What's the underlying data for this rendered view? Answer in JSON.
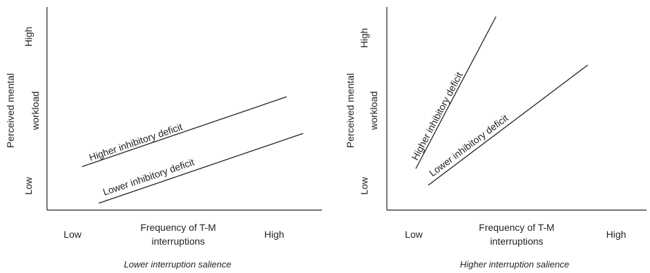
{
  "chart_data": [
    {
      "type": "line",
      "caption": "Lower interruption salience",
      "xlabel": [
        "Frequency of T-M",
        "interruptions"
      ],
      "ylabel": [
        "Perceived mental",
        "workload"
      ],
      "xticks": [
        "Low",
        "High"
      ],
      "yticks": [
        "Low",
        "High"
      ],
      "series": [
        {
          "name": "Higher inhibitory deficit",
          "x": [
            "Low",
            "High"
          ],
          "values": [
            0.31,
            0.6
          ]
        },
        {
          "name": "Lower inhibitory deficit",
          "x": [
            "Low",
            "High"
          ],
          "values": [
            0.05,
            0.39
          ]
        }
      ]
    },
    {
      "type": "line",
      "caption": "Higher interruption salience",
      "xlabel": [
        "Frequency of T-M",
        "interruptions"
      ],
      "ylabel": [
        "Perceived mental",
        "workload"
      ],
      "xticks": [
        "Low",
        "High"
      ],
      "yticks": [
        "Low",
        "High"
      ],
      "series": [
        {
          "name": "Higher inhibitory deficit",
          "x": [
            "Low",
            "High"
          ],
          "values": [
            0.23,
            1.0
          ]
        },
        {
          "name": "Lower inhibitory deficit",
          "x": [
            "Low",
            "High"
          ],
          "values": [
            0.14,
            0.77
          ]
        }
      ]
    }
  ]
}
